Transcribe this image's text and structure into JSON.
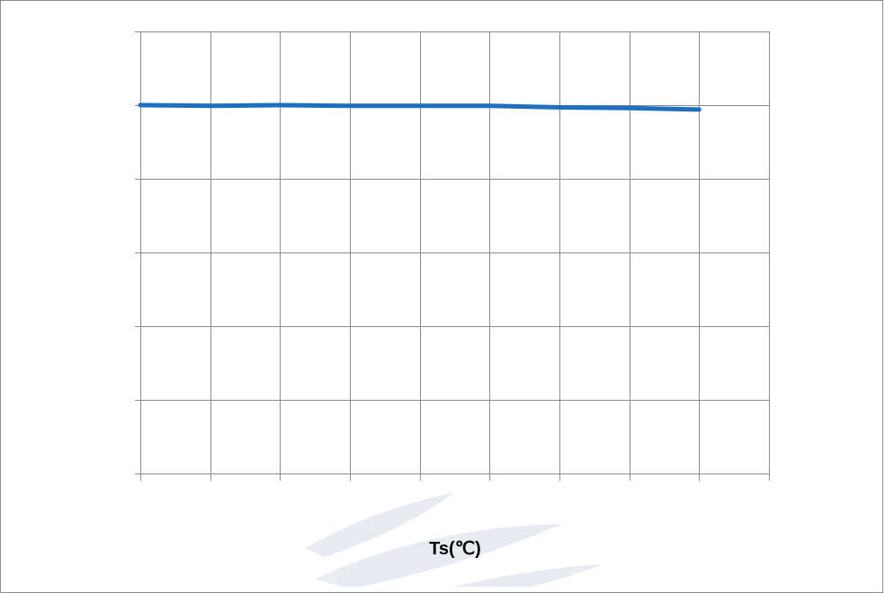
{
  "chart_data": {
    "type": "line",
    "title": "",
    "xlabel": "Ts(℃)",
    "ylabel": "",
    "grid": true,
    "x_gridlines": 9,
    "y_gridlines": 6,
    "series": [
      {
        "color": "#1f6fc1",
        "x": [
          0,
          1,
          2,
          3,
          4,
          5,
          6,
          7,
          8
        ],
        "y": [
          5.0,
          4.99,
          5.0,
          4.99,
          4.99,
          4.99,
          4.97,
          4.96,
          4.94
        ]
      }
    ],
    "xlim": [
      0,
      9
    ],
    "ylim": [
      0,
      6
    ]
  },
  "colors": {
    "grid": "#8c8c8c",
    "watermark": "#d7dce8"
  }
}
